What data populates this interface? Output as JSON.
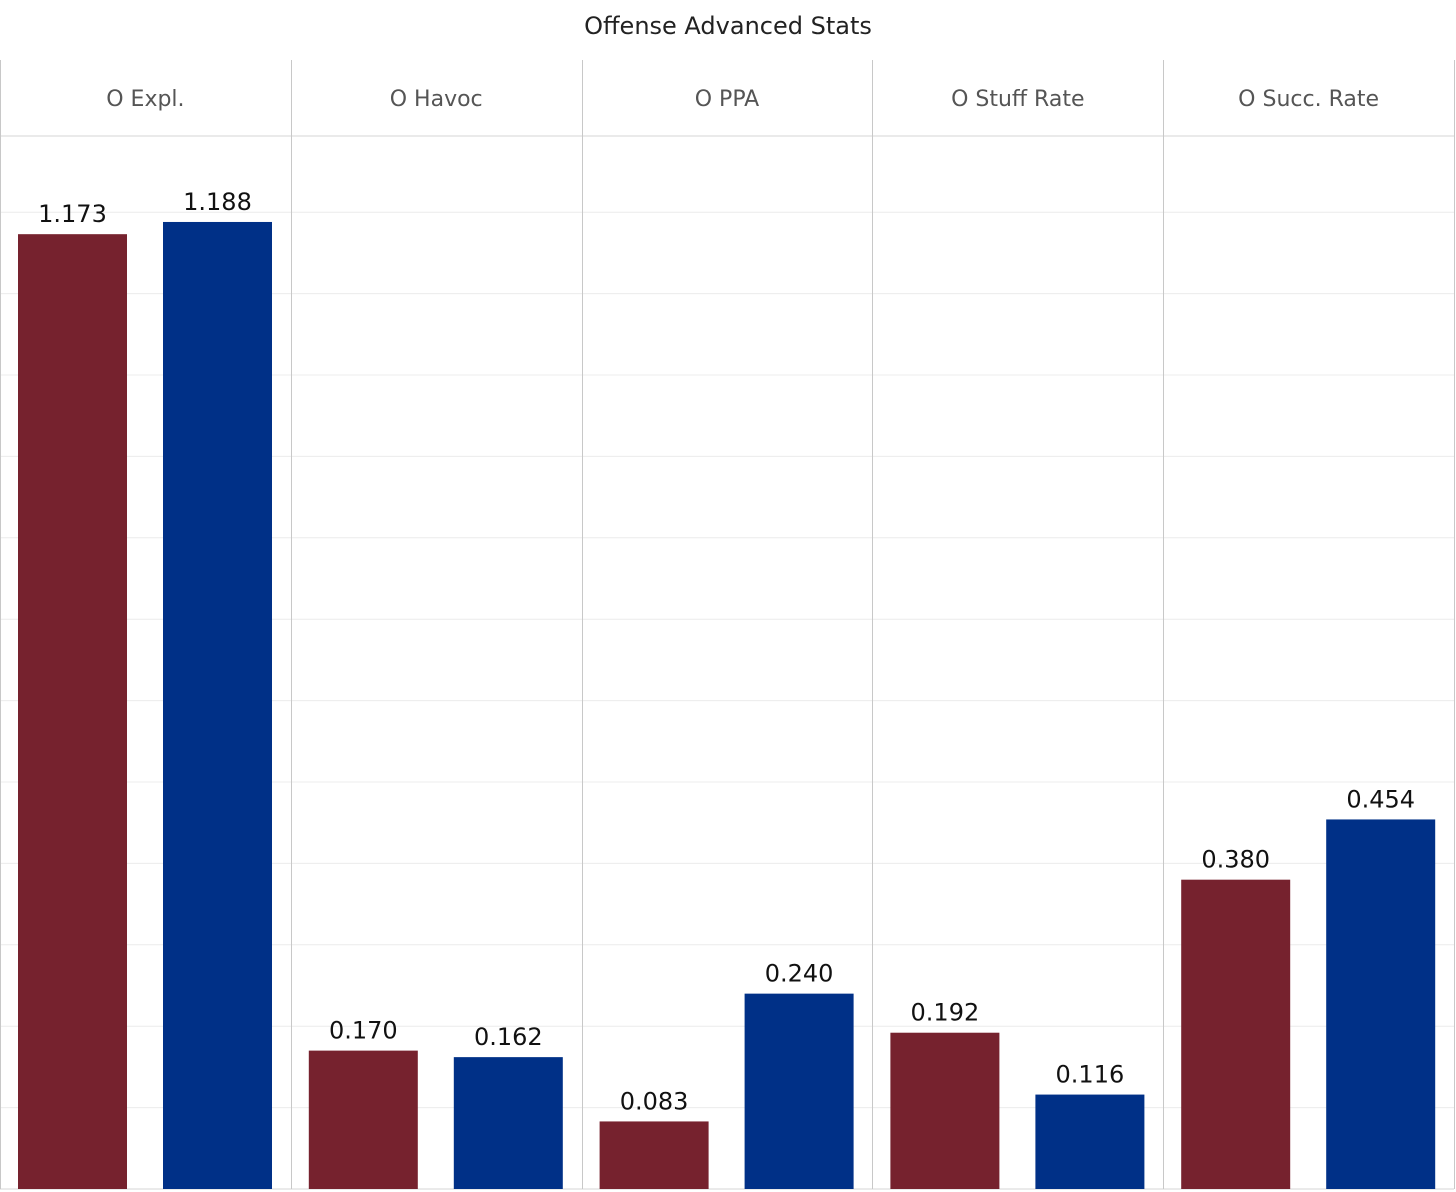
{
  "chart_data": {
    "type": "bar",
    "title": "Offense Advanced Stats",
    "categories": [
      "O Expl.",
      "O Havoc",
      "O PPA",
      "O Stuff Rate",
      "O Succ. Rate"
    ],
    "series": [
      {
        "color": "#76222e",
        "values": [
          1.173,
          0.17,
          0.083,
          0.192,
          0.38
        ]
      },
      {
        "color": "#003087",
        "values": [
          1.188,
          0.162,
          0.24,
          0.116,
          0.454
        ]
      }
    ],
    "labels": [
      [
        "1.173",
        "0.170",
        "0.083",
        "0.192",
        "0.380"
      ],
      [
        "1.188",
        "0.162",
        "0.240",
        "0.116",
        "0.454"
      ]
    ],
    "ylim": [
      0,
      1.3
    ],
    "grid": true
  }
}
